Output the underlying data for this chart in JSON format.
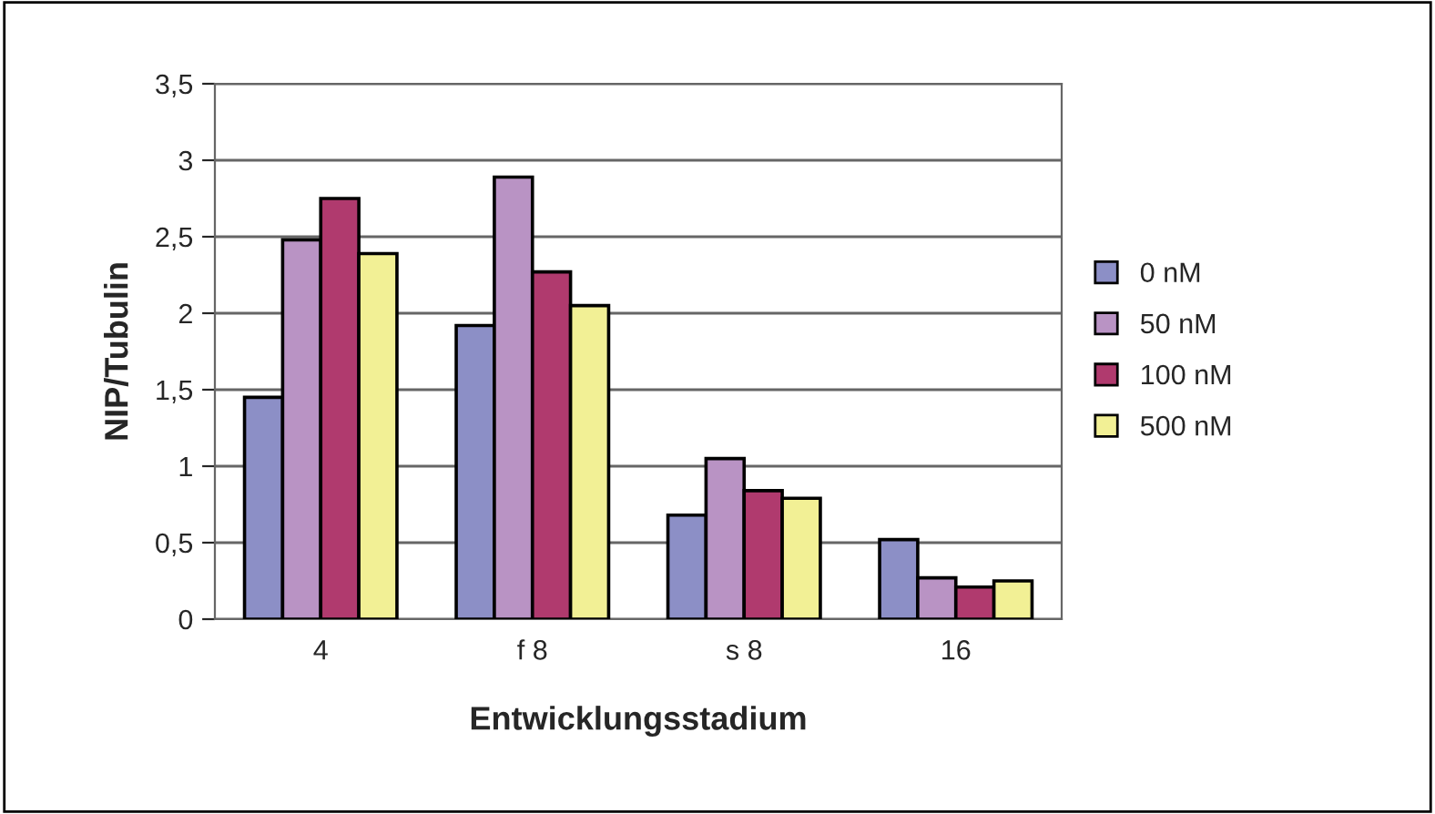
{
  "chart_data": {
    "type": "bar",
    "xlabel": "Entwicklungsstadium",
    "ylabel": "NIP/Tubulin",
    "categories": [
      "4",
      "f 8",
      "s 8",
      "16"
    ],
    "series": [
      {
        "name": "0 nM",
        "color": "#8c8fc6",
        "values": [
          1.45,
          1.92,
          0.68,
          0.52
        ]
      },
      {
        "name": "50 nM",
        "color": "#b993c4",
        "values": [
          2.48,
          2.89,
          1.05,
          0.27
        ]
      },
      {
        "name": "100 nM",
        "color": "#b03a6e",
        "values": [
          2.75,
          2.27,
          0.84,
          0.21
        ]
      },
      {
        "name": "500 nM",
        "color": "#f2f095",
        "values": [
          2.39,
          2.05,
          0.79,
          0.25
        ]
      }
    ],
    "ylim": [
      0,
      3.5
    ],
    "yticks": [
      0,
      {
        "value": 0.5,
        "label": "0,5"
      },
      1,
      {
        "value": 1.5,
        "label": "1,5"
      },
      2,
      {
        "value": 2.5,
        "label": "2,5"
      },
      3,
      {
        "value": 3.5,
        "label": "3,5"
      }
    ],
    "grid": "y",
    "legend": "right"
  }
}
